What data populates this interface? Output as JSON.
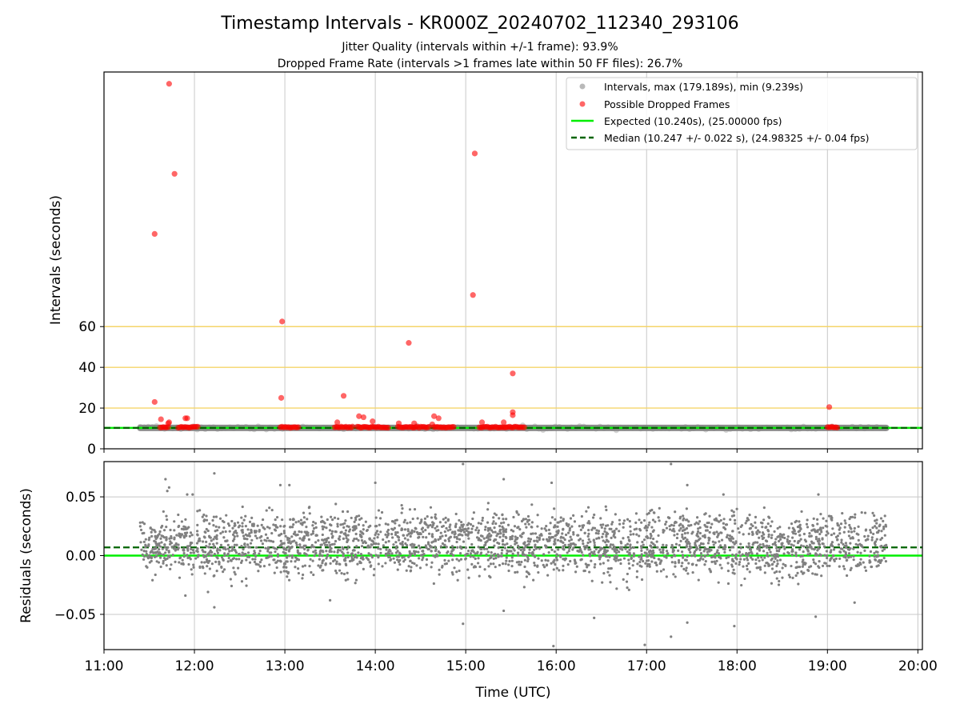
{
  "title": "Timestamp Intervals - KR000Z_20240702_112340_293106",
  "subtitle_1": "Jitter Quality (intervals within +/-1 frame): 93.9%",
  "subtitle_2": "Dropped Frame Rate (intervals >1 frames late within 50 FF files): 26.7%",
  "colors": {
    "intervals": "#808080",
    "dropped": "#ff0000",
    "expected": "#00ee00",
    "median": "#006400",
    "threshold": "#f5d56a",
    "grid": "#c8c8c8"
  },
  "chart_data": [
    {
      "type": "scatter",
      "panel": "top",
      "xlabel": "",
      "ylabel": "Intervals (seconds)",
      "xlim_hours": [
        11.0,
        20.05
      ],
      "ylim": [
        0,
        185
      ],
      "grid": "vertical",
      "yticks": [
        0,
        20,
        40,
        60
      ],
      "ytick_labels": [
        "0",
        "20",
        "40",
        "60"
      ],
      "threshold_lines": [
        20,
        40,
        60
      ],
      "legend_position": "top-right",
      "legend": [
        {
          "kind": "gray-dot",
          "label": "Intervals, max (179.189s), min (9.239s)"
        },
        {
          "kind": "red-dot",
          "label": "Possible Dropped Frames"
        },
        {
          "kind": "green-line",
          "label": "Expected (10.240s), (25.00000 fps)"
        },
        {
          "kind": "dashed-line",
          "label": "Median (10.247 +/- 0.022 s), (24.98325 +/- 0.04 fps)"
        }
      ],
      "expected_value": 10.24,
      "median_value": 10.247,
      "intervals_segment_hours": [
        11.4,
        19.65
      ],
      "dropped_points": [
        [
          11.72,
          179.2
        ],
        [
          11.78,
          135.0
        ],
        [
          11.56,
          105.5
        ],
        [
          15.1,
          145.0
        ],
        [
          15.08,
          75.5
        ],
        [
          12.97,
          62.5
        ],
        [
          14.37,
          52.0
        ],
        [
          15.52,
          37.0
        ],
        [
          12.96,
          25.0
        ],
        [
          13.65,
          26.0
        ],
        [
          11.56,
          23.0
        ],
        [
          19.02,
          20.5
        ],
        [
          15.52,
          18.0
        ],
        [
          15.52,
          16.5
        ],
        [
          13.82,
          16.0
        ],
        [
          13.87,
          15.5
        ],
        [
          14.65,
          16.0
        ],
        [
          14.7,
          15.0
        ],
        [
          11.9,
          15.0
        ],
        [
          11.92,
          15.0
        ],
        [
          11.63,
          14.5
        ],
        [
          13.97,
          13.5
        ],
        [
          11.72,
          13.0
        ],
        [
          11.71,
          12.5
        ],
        [
          13.58,
          13.0
        ],
        [
          15.18,
          13.0
        ],
        [
          15.42,
          13.0
        ],
        [
          14.26,
          12.5
        ],
        [
          14.43,
          12.5
        ],
        [
          14.63,
          12.0
        ]
      ],
      "dropped_clusters_hours": [
        [
          11.62,
          11.72
        ],
        [
          11.82,
          12.05
        ],
        [
          12.95,
          13.15
        ],
        [
          13.55,
          13.75
        ],
        [
          13.8,
          14.15
        ],
        [
          14.25,
          14.6
        ],
        [
          14.65,
          14.88
        ],
        [
          15.15,
          15.45
        ],
        [
          15.45,
          15.65
        ],
        [
          19.0,
          19.12
        ]
      ]
    },
    {
      "type": "scatter",
      "panel": "bottom",
      "xlabel": "Time (UTC)",
      "ylabel": "Residuals (seconds)",
      "xlim_hours": [
        11.0,
        20.05
      ],
      "ylim": [
        -0.08,
        0.08
      ],
      "grid": "both",
      "yticks": [
        -0.05,
        0.0,
        0.05
      ],
      "ytick_labels": [
        "−0.05",
        "0.00",
        "0.05"
      ],
      "xticks": [
        11,
        12,
        13,
        14,
        15,
        16,
        17,
        18,
        19,
        20
      ],
      "xtick_labels": [
        "11:00",
        "12:00",
        "13:00",
        "14:00",
        "15:00",
        "16:00",
        "17:00",
        "18:00",
        "19:00",
        "20:00"
      ],
      "expected_residual": 0.0,
      "median_residual": 0.007,
      "residual_bands": [
        0.0,
        0.02
      ],
      "residual_spread": 0.012,
      "residual_range_hours": [
        11.4,
        19.65
      ],
      "point_count": 2900,
      "outliers": [
        [
          11.68,
          0.065
        ],
        [
          11.7,
          0.055
        ],
        [
          11.72,
          0.058
        ],
        [
          12.22,
          0.07
        ],
        [
          12.22,
          -0.044
        ],
        [
          11.92,
          0.052
        ],
        [
          14.0,
          0.062
        ],
        [
          14.97,
          0.078
        ],
        [
          14.97,
          -0.058
        ],
        [
          15.42,
          0.065
        ],
        [
          15.42,
          -0.047
        ],
        [
          15.95,
          0.062
        ],
        [
          15.97,
          -0.077
        ],
        [
          16.42,
          -0.053
        ],
        [
          16.98,
          -0.076
        ],
        [
          17.27,
          0.078
        ],
        [
          17.27,
          -0.069
        ],
        [
          17.45,
          0.06
        ],
        [
          17.45,
          -0.057
        ],
        [
          17.97,
          -0.06
        ],
        [
          18.87,
          -0.052
        ],
        [
          11.9,
          -0.034
        ],
        [
          12.15,
          -0.031
        ],
        [
          13.5,
          -0.038
        ],
        [
          19.3,
          -0.04
        ],
        [
          13.05,
          0.06
        ],
        [
          12.95,
          0.06
        ],
        [
          11.98,
          0.052
        ],
        [
          17.85,
          0.052
        ],
        [
          18.9,
          0.052
        ]
      ]
    }
  ]
}
